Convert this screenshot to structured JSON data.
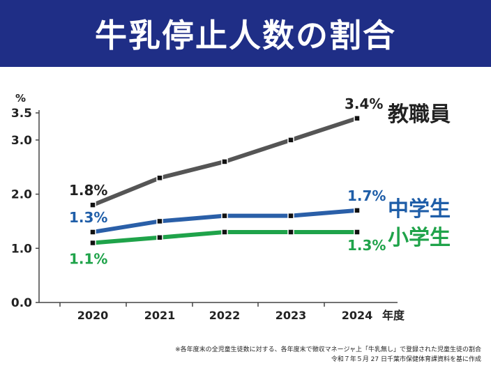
{
  "title": "牛乳停止人数の割合",
  "chart_data": {
    "type": "line",
    "x": [
      "2020",
      "2021",
      "2022",
      "2023",
      "2024"
    ],
    "x_unit": "年度",
    "y_unit": "%",
    "ylim": [
      0,
      3.5
    ],
    "yticks": [
      "0.0",
      "1.0",
      "2.0",
      "3.0",
      "3.5"
    ],
    "ytick_values": [
      0,
      1,
      2,
      3,
      3.5
    ],
    "grid": false,
    "series": [
      {
        "name": "教職員",
        "values": [
          1.8,
          2.3,
          2.6,
          3.0,
          3.4
        ],
        "color": "#555555",
        "label_color": "#222222",
        "start_label": "1.8%",
        "end_label": "3.4%"
      },
      {
        "name": "中学生",
        "values": [
          1.3,
          1.5,
          1.6,
          1.6,
          1.7
        ],
        "color": "#2a5fa8",
        "label_color": "#1f5ea8",
        "start_label": "1.3%",
        "end_label": "1.7%"
      },
      {
        "name": "小学生",
        "values": [
          1.1,
          1.2,
          1.3,
          1.3,
          1.3
        ],
        "color": "#1fa34a",
        "label_color": "#1fa34a",
        "start_label": "1.1%",
        "end_label": "1.3%"
      }
    ]
  },
  "footnote": {
    "line1": "※各年度末の全児童生徒数に対する、各年度末で徴収マネージャ上「牛乳無し」で登録された児童生徒の割合",
    "line2": "令和７年５月 27 日千葉市保健体育課資料を基に作成"
  }
}
